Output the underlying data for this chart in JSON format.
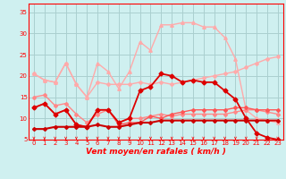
{
  "xlabel": "Vent moyen/en rafales ( km/h )",
  "xlim": [
    -0.5,
    23.5
  ],
  "ylim": [
    5,
    37
  ],
  "yticks": [
    5,
    10,
    15,
    20,
    25,
    30,
    35
  ],
  "xticks": [
    0,
    1,
    2,
    3,
    4,
    5,
    6,
    7,
    8,
    9,
    10,
    11,
    12,
    13,
    14,
    15,
    16,
    17,
    18,
    19,
    20,
    21,
    22,
    23
  ],
  "background_color": "#cff0f0",
  "grid_color": "#aacfcf",
  "series": [
    {
      "x": [
        0,
        1,
        2,
        3,
        4,
        5,
        6,
        7,
        8,
        9,
        10,
        11,
        12,
        13,
        14,
        15,
        16,
        17,
        18,
        19,
        20,
        21,
        22,
        23
      ],
      "y": [
        20.5,
        19.0,
        18.5,
        23.0,
        18.0,
        15.0,
        23.0,
        21.0,
        17.0,
        21.0,
        28.0,
        26.0,
        32.0,
        32.0,
        32.5,
        32.5,
        31.5,
        31.5,
        29.0,
        24.0,
        12.0,
        10.0,
        9.5,
        9.0
      ],
      "color": "#ffaaaa",
      "lw": 1.0,
      "marker": "^",
      "ms": 2.5,
      "zorder": 2
    },
    {
      "x": [
        0,
        1,
        2,
        3,
        4,
        5,
        6,
        7,
        8,
        9,
        10,
        11,
        12,
        13,
        14,
        15,
        16,
        17,
        18,
        19,
        20,
        21,
        22,
        23
      ],
      "y": [
        20.5,
        19.0,
        18.5,
        23.0,
        18.0,
        15.0,
        18.5,
        18.0,
        18.0,
        18.0,
        18.5,
        18.0,
        18.5,
        18.0,
        18.5,
        19.0,
        19.5,
        20.0,
        20.5,
        21.0,
        22.0,
        23.0,
        24.0,
        24.5
      ],
      "color": "#ffaaaa",
      "lw": 1.0,
      "marker": "D",
      "ms": 2.0,
      "zorder": 2
    },
    {
      "x": [
        0,
        1,
        2,
        3,
        4,
        5,
        6,
        7,
        8,
        9,
        10,
        11,
        12,
        13,
        14,
        15,
        16,
        17,
        18,
        19,
        20,
        21,
        22,
        23
      ],
      "y": [
        15.0,
        15.5,
        13.0,
        13.5,
        11.0,
        9.0,
        11.0,
        12.0,
        9.0,
        10.0,
        10.0,
        10.5,
        11.0,
        10.5,
        11.0,
        11.0,
        11.0,
        11.0,
        11.0,
        11.5,
        12.0,
        12.0,
        11.5,
        11.0
      ],
      "color": "#ff8888",
      "lw": 1.0,
      "marker": "D",
      "ms": 2.0,
      "zorder": 3
    },
    {
      "x": [
        0,
        1,
        2,
        3,
        4,
        5,
        6,
        7,
        8,
        9,
        10,
        11,
        12,
        13,
        14,
        15,
        16,
        17,
        18,
        19,
        20,
        21,
        22,
        23
      ],
      "y": [
        12.5,
        13.5,
        11.0,
        12.0,
        8.5,
        8.0,
        12.0,
        12.0,
        9.0,
        10.0,
        16.5,
        17.5,
        20.5,
        20.0,
        18.5,
        19.0,
        18.5,
        18.5,
        16.5,
        14.5,
        10.0,
        6.5,
        5.5,
        5.0
      ],
      "color": "#dd0000",
      "lw": 1.3,
      "marker": "D",
      "ms": 2.5,
      "zorder": 5
    },
    {
      "x": [
        0,
        1,
        2,
        3,
        4,
        5,
        6,
        7,
        8,
        9,
        10,
        11,
        12,
        13,
        14,
        15,
        16,
        17,
        18,
        19,
        20,
        21,
        22,
        23
      ],
      "y": [
        7.5,
        7.5,
        8.0,
        8.0,
        8.0,
        8.0,
        8.5,
        8.0,
        8.0,
        8.5,
        9.0,
        9.0,
        9.5,
        9.5,
        9.5,
        9.5,
        9.5,
        9.5,
        9.5,
        9.5,
        9.5,
        9.5,
        9.5,
        9.5
      ],
      "color": "#cc0000",
      "lw": 1.5,
      "marker": "D",
      "ms": 2.0,
      "zorder": 6
    },
    {
      "x": [
        0,
        1,
        2,
        3,
        4,
        5,
        6,
        7,
        8,
        9,
        10,
        11,
        12,
        13,
        14,
        15,
        16,
        17,
        18,
        19,
        20,
        21,
        22,
        23
      ],
      "y": [
        12.5,
        13.5,
        11.0,
        12.0,
        8.5,
        8.0,
        12.0,
        12.0,
        8.5,
        9.0,
        9.0,
        10.5,
        10.0,
        11.0,
        11.5,
        12.0,
        12.0,
        12.0,
        12.0,
        12.5,
        12.5,
        12.0,
        12.0,
        12.0
      ],
      "color": "#ff5555",
      "lw": 1.0,
      "marker": "D",
      "ms": 2.0,
      "zorder": 4
    }
  ],
  "arrow_symbol": "↓",
  "tick_fontsize": 5,
  "xlabel_fontsize": 6.5
}
